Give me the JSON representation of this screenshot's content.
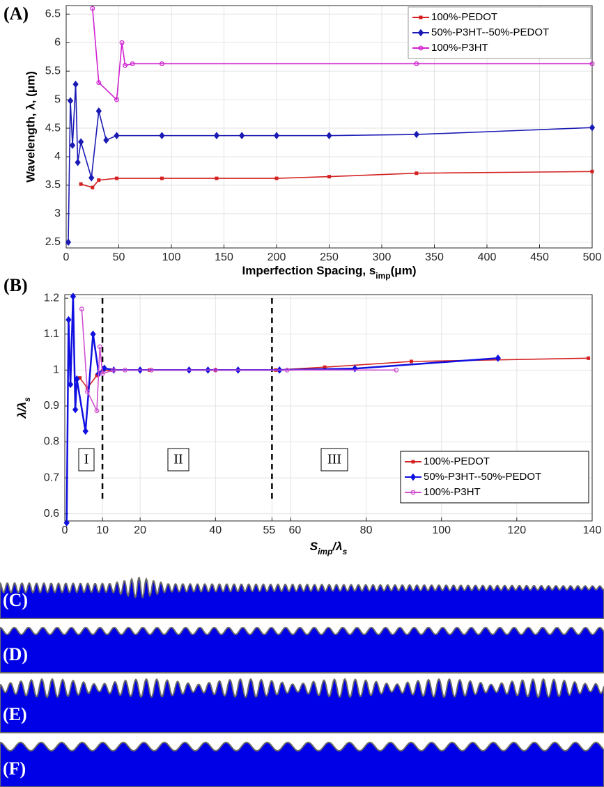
{
  "chart_data": [
    {
      "type": "line",
      "panel": "(A)",
      "xlabel": [
        {
          "text": "Imperfection Spacing, ",
          "sub": false
        },
        {
          "text": "s",
          "sub": false
        },
        {
          "text": "imp",
          "sub": true
        },
        {
          "text": "(μm)",
          "sub": false
        }
      ],
      "ylabel": "Wavelength, λ, (μm)",
      "xlim": [
        0,
        500
      ],
      "xticks": [
        0,
        50,
        100,
        150,
        200,
        250,
        300,
        350,
        400,
        450,
        500
      ],
      "ylim": [
        2.4,
        6.65
      ],
      "yticks": [
        2.5,
        3,
        3.5,
        4,
        4.5,
        5,
        5.5,
        6,
        6.5
      ],
      "grid": true,
      "legend": "upper right",
      "series": [
        {
          "name": "100%-PEDOT",
          "color": "#d42020",
          "marker": "square",
          "x": [
            14,
            25,
            31,
            48,
            91,
            143,
            200,
            250,
            333,
            500
          ],
          "values": [
            3.52,
            3.46,
            3.59,
            3.62,
            3.62,
            3.62,
            3.62,
            3.65,
            3.71,
            3.74
          ]
        },
        {
          "name": "50%-P3HT--50%-PEDOT",
          "color": "#1a1ab4",
          "marker": "diamond",
          "x": [
            2,
            4,
            6,
            9,
            11,
            14,
            24,
            31,
            38,
            48,
            91,
            143,
            167,
            200,
            250,
            333,
            500
          ],
          "values": [
            2.5,
            4.98,
            4.2,
            5.27,
            3.9,
            4.26,
            3.63,
            4.8,
            4.29,
            4.37,
            4.37,
            4.37,
            4.37,
            4.37,
            4.37,
            4.39,
            4.51
          ]
        },
        {
          "name": "100%-P3HT",
          "color": "#d020d0",
          "marker": "circle",
          "x": [
            25,
            31,
            48,
            53,
            56,
            63,
            91,
            333,
            500
          ],
          "values": [
            6.6,
            5.3,
            5.0,
            6.0,
            5.6,
            5.63,
            5.63,
            5.63,
            5.63
          ]
        }
      ]
    },
    {
      "type": "line",
      "panel": "(B)",
      "xlabel": [
        {
          "text": "S",
          "sub": false
        },
        {
          "text": "imp",
          "sub": true
        },
        {
          "text": "/λ",
          "sub": false
        },
        {
          "text": "s",
          "sub": true
        }
      ],
      "ylabel": [
        {
          "text": "λ/λ",
          "sub": false
        },
        {
          "text": "s",
          "sub": true
        }
      ],
      "xlim": [
        0,
        140
      ],
      "xticks": [
        0,
        10,
        20,
        40,
        55,
        60,
        80,
        100,
        120,
        140
      ],
      "ylim": [
        0.58,
        1.21
      ],
      "yticks": [
        0.6,
        0.7,
        0.8,
        0.9,
        1,
        1.1,
        1.2
      ],
      "grid": true,
      "legend": "lower right",
      "vlines": [
        10,
        55
      ],
      "regions": [
        "I",
        "II",
        "III"
      ],
      "series": [
        {
          "name": "100%-PEDOT",
          "color": "#d42020",
          "marker": "square",
          "x": [
            4,
            6,
            8.5,
            10,
            12.5,
            22.5,
            40,
            56,
            69,
            92,
            139
          ],
          "values": [
            0.978,
            0.95,
            0.985,
            0.997,
            1.0,
            1.0,
            1.0,
            1.0,
            1.008,
            1.024,
            1.033
          ]
        },
        {
          "name": "50%-P3HT--50%-PEDOT",
          "color": "#1010e0",
          "marker": "diamond",
          "x": [
            0.5,
            1,
            1.5,
            2.2,
            2.8,
            3.2,
            5.5,
            7.5,
            9,
            10.5,
            13,
            20,
            33,
            38,
            46,
            57,
            77,
            115
          ],
          "values": [
            0.575,
            1.14,
            0.96,
            1.205,
            0.89,
            0.975,
            0.83,
            1.1,
            0.99,
            1.005,
            1.0,
            1.0,
            1.0,
            1.0,
            1.0,
            1.0,
            1.004,
            1.033
          ]
        },
        {
          "name": "100%-P3HT",
          "color": "#d050d0",
          "marker": "circle",
          "x": [
            4.5,
            6,
            8.5,
            9.3,
            10,
            13,
            16,
            23,
            40,
            59,
            88
          ],
          "values": [
            1.17,
            0.94,
            0.887,
            1.065,
            0.99,
            1.0,
            1.0,
            1.0,
            1.0,
            1.0,
            1.0
          ]
        }
      ]
    }
  ],
  "panels": [
    "(C)",
    "(D)",
    "(E)",
    "(F)"
  ]
}
